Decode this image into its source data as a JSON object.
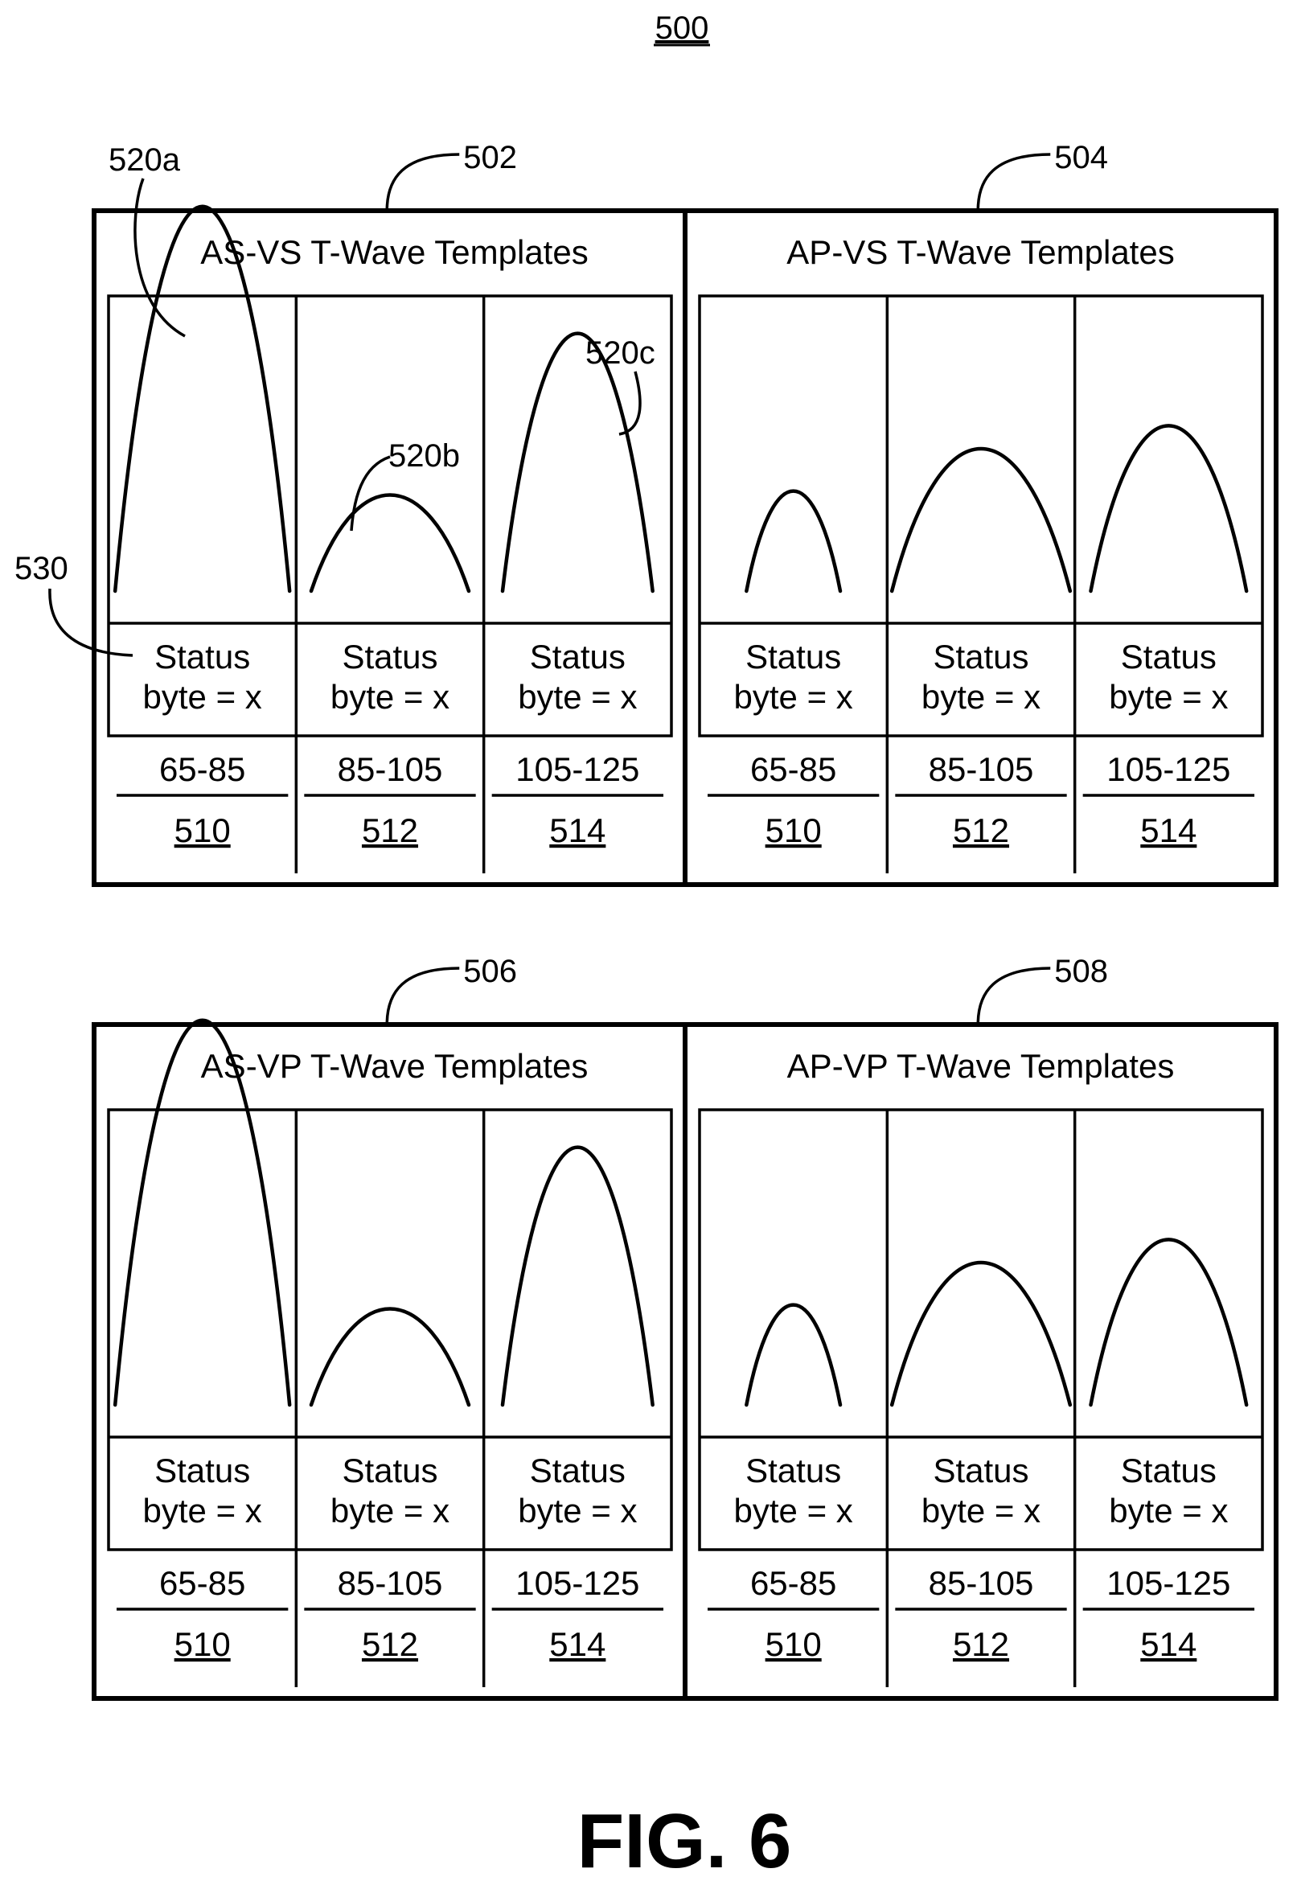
{
  "figure": {
    "number_label": "500",
    "fig_caption": "FIG. 6",
    "callouts": {
      "wave_a": "520a",
      "wave_b": "520b",
      "wave_c": "520c",
      "status_cell": "530"
    }
  },
  "panels": [
    {
      "ref": "502",
      "title": "AS-VS T-Wave Templates",
      "columns": [
        {
          "status_line1": "Status",
          "status_line2": "byte = x",
          "range": "65-85",
          "ref": "510",
          "wave_level": 1.0,
          "wave_width": 0.93
        },
        {
          "status_line1": "Status",
          "status_line2": "byte = x",
          "range": "85-105",
          "ref": "512",
          "wave_level": 0.25,
          "wave_width": 0.84
        },
        {
          "status_line1": "Status",
          "status_line2": "byte = x",
          "range": "105-125",
          "ref": "514",
          "wave_level": 0.67,
          "wave_width": 0.8
        }
      ]
    },
    {
      "ref": "504",
      "title": "AP-VS T-Wave Templates",
      "columns": [
        {
          "status_line1": "Status",
          "status_line2": "byte = x",
          "range": "65-85",
          "ref": "510",
          "wave_level": 0.26,
          "wave_width": 0.5
        },
        {
          "status_line1": "Status",
          "status_line2": "byte = x",
          "range": "85-105",
          "ref": "512",
          "wave_level": 0.37,
          "wave_width": 0.95
        },
        {
          "status_line1": "Status",
          "status_line2": "byte = x",
          "range": "105-125",
          "ref": "514",
          "wave_level": 0.43,
          "wave_width": 0.83
        }
      ]
    },
    {
      "ref": "506",
      "title": "AS-VP T-Wave Templates",
      "columns": [
        {
          "status_line1": "Status",
          "status_line2": "byte = x",
          "range": "65-85",
          "ref": "510",
          "wave_level": 1.0,
          "wave_width": 0.93
        },
        {
          "status_line1": "Status",
          "status_line2": "byte = x",
          "range": "85-105",
          "ref": "512",
          "wave_level": 0.25,
          "wave_width": 0.84
        },
        {
          "status_line1": "Status",
          "status_line2": "byte = x",
          "range": "105-125",
          "ref": "514",
          "wave_level": 0.67,
          "wave_width": 0.8
        }
      ]
    },
    {
      "ref": "508",
      "title": "AP-VP T-Wave Templates",
      "columns": [
        {
          "status_line1": "Status",
          "status_line2": "byte = x",
          "range": "65-85",
          "ref": "510",
          "wave_level": 0.26,
          "wave_width": 0.5
        },
        {
          "status_line1": "Status",
          "status_line2": "byte = x",
          "range": "85-105",
          "ref": "512",
          "wave_level": 0.37,
          "wave_width": 0.95
        },
        {
          "status_line1": "Status",
          "status_line2": "byte = x",
          "range": "105-125",
          "ref": "514",
          "wave_level": 0.43,
          "wave_width": 0.83
        }
      ]
    }
  ]
}
